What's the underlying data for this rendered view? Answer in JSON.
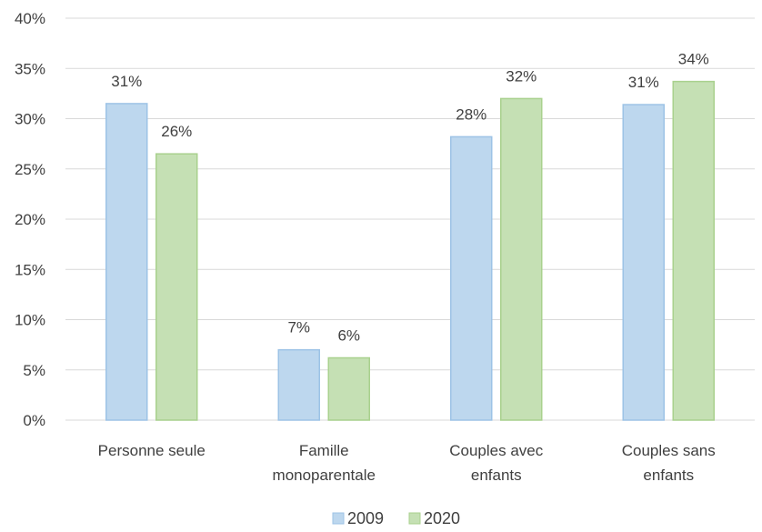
{
  "chart_data": {
    "type": "bar",
    "categories": [
      [
        "Personne seule"
      ],
      [
        "Famille",
        "monoparentale"
      ],
      [
        "Couples avec",
        "enfants"
      ],
      [
        "Couples sans",
        "enfants"
      ]
    ],
    "series": [
      {
        "name": "2009",
        "values": [
          31.5,
          7.0,
          28.2,
          31.4
        ],
        "labels": [
          "31%",
          "7%",
          "28%",
          "31%"
        ],
        "color": "#BDD7EE",
        "border": "#9DC3E6"
      },
      {
        "name": "2020",
        "values": [
          26.5,
          6.2,
          32.0,
          33.7
        ],
        "labels": [
          "26%",
          "6%",
          "32%",
          "34%"
        ],
        "color": "#C5E0B4",
        "border": "#A9D18E"
      }
    ],
    "ylim": [
      0,
      40
    ],
    "yticks": [
      0,
      5,
      10,
      15,
      20,
      25,
      30,
      35,
      40
    ],
    "ytick_labels": [
      "0%",
      "5%",
      "10%",
      "15%",
      "20%",
      "25%",
      "30%",
      "35%",
      "40%"
    ],
    "grid": true,
    "grid_color": "#D9D9D9",
    "legend": "bottom",
    "title": "",
    "xlabel": "",
    "ylabel": ""
  }
}
